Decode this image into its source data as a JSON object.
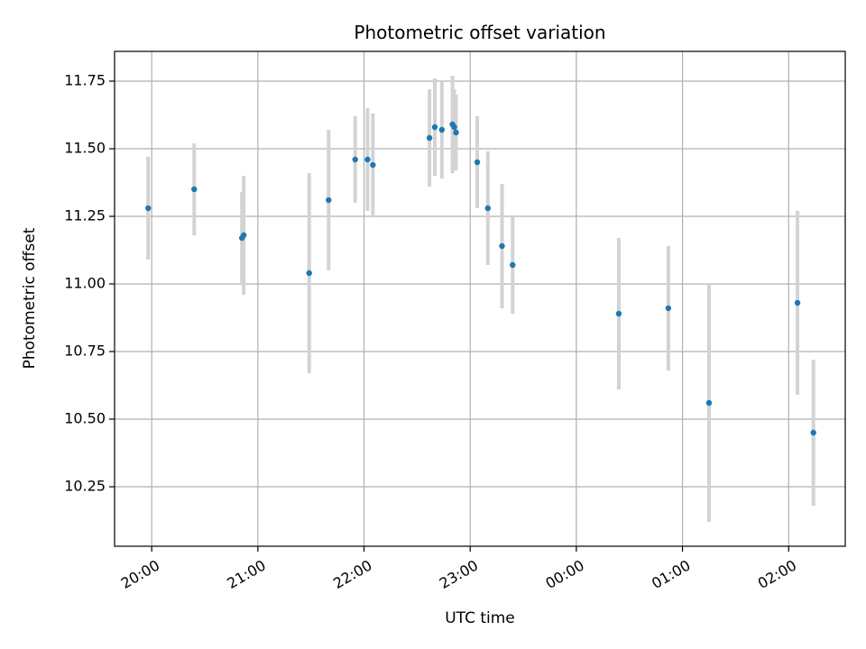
{
  "chart_data": {
    "type": "scatter",
    "title": "Photometric offset variation",
    "xlabel": "UTC time",
    "ylabel": "Photometric offset",
    "grid": true,
    "x_ticks": [
      "20:00",
      "21:00",
      "22:00",
      "23:00",
      "00:00",
      "01:00",
      "02:00"
    ],
    "y_ticks": [
      "10.25",
      "10.50",
      "10.75",
      "11.00",
      "11.25",
      "11.50",
      "11.75"
    ],
    "xlim": [
      "19:39",
      "02:32"
    ],
    "ylim": [
      10.03,
      11.86
    ],
    "colors": {
      "point": "#1f77b4",
      "errorbar": "#d3d3d3",
      "grid": "#b0b0b0"
    },
    "series": [
      {
        "points": [
          {
            "x": "19:58",
            "y": 11.28,
            "err": 0.19
          },
          {
            "x": "20:24",
            "y": 11.35,
            "err": 0.17
          },
          {
            "x": "20:51",
            "y": 11.17,
            "err": 0.17
          },
          {
            "x": "20:52",
            "y": 11.18,
            "err": 0.22
          },
          {
            "x": "21:29",
            "y": 11.04,
            "err": 0.37
          },
          {
            "x": "21:40",
            "y": 11.31,
            "err": 0.26
          },
          {
            "x": "21:55",
            "y": 11.46,
            "err": 0.16
          },
          {
            "x": "22:02",
            "y": 11.46,
            "err": 0.19
          },
          {
            "x": "22:05",
            "y": 11.44,
            "err": 0.19
          },
          {
            "x": "22:37",
            "y": 11.54,
            "err": 0.18
          },
          {
            "x": "22:40",
            "y": 11.58,
            "err": 0.18
          },
          {
            "x": "22:44",
            "y": 11.57,
            "err": 0.18
          },
          {
            "x": "22:50",
            "y": 11.59,
            "err": 0.18
          },
          {
            "x": "22:51",
            "y": 11.58,
            "err": 0.14
          },
          {
            "x": "22:52",
            "y": 11.56,
            "err": 0.14
          },
          {
            "x": "23:04",
            "y": 11.45,
            "err": 0.17
          },
          {
            "x": "23:10",
            "y": 11.28,
            "err": 0.21
          },
          {
            "x": "23:18",
            "y": 11.14,
            "err": 0.23
          },
          {
            "x": "23:24",
            "y": 11.07,
            "err": 0.18
          },
          {
            "x": "00:24",
            "y": 10.89,
            "err": 0.28
          },
          {
            "x": "00:52",
            "y": 10.91,
            "err": 0.23
          },
          {
            "x": "01:15",
            "y": 10.56,
            "err": 0.44
          },
          {
            "x": "02:05",
            "y": 10.93,
            "err": 0.34
          },
          {
            "x": "02:14",
            "y": 10.45,
            "err": 0.27
          }
        ]
      }
    ]
  }
}
